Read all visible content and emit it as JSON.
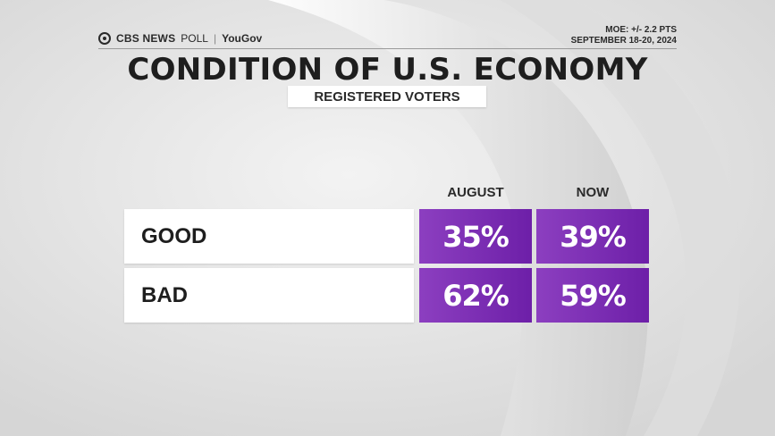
{
  "header": {
    "brand_cbs": "CBS NEWS",
    "brand_poll": "POLL",
    "brand_sep": "|",
    "brand_partner": "YouGov",
    "moe": "MOE: +/- 2.2 PTS",
    "dates": "SEPTEMBER 18-20, 2024"
  },
  "chart_data": {
    "type": "table",
    "title": "CONDITION OF U.S. ECONOMY",
    "subtitle": "REGISTERED VOTERS",
    "columns": [
      "AUGUST",
      "NOW"
    ],
    "rows": [
      {
        "label": "GOOD",
        "values": [
          "35%",
          "39%"
        ]
      },
      {
        "label": "BAD",
        "values": [
          "62%",
          "59%"
        ]
      }
    ],
    "colors": {
      "cell": "#7b2fb3",
      "row_label_bg": "#ffffff"
    }
  }
}
